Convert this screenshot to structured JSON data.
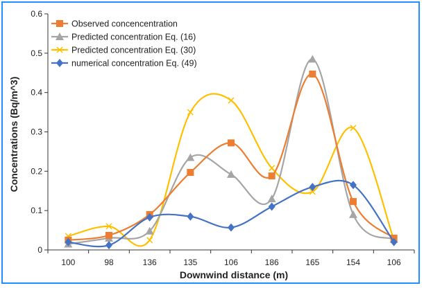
{
  "chart_data": {
    "type": "line",
    "title": "",
    "xlabel": "Downwind distance (m)",
    "ylabel": "Concentrations (Bq/m^3)",
    "categories": [
      "100",
      "98",
      "136",
      "135",
      "106",
      "186",
      "165",
      "154",
      "106"
    ],
    "ylim": [
      0,
      0.6
    ],
    "yticks": [
      "0",
      "0.1",
      "0.2",
      "0.3",
      "0.4",
      "0.5",
      "0.6"
    ],
    "grid": false,
    "legend_position": "top-left",
    "series": [
      {
        "name": "Observed concencentration",
        "color": "#ed7d31",
        "marker": "square",
        "values": [
          0.025,
          0.037,
          0.09,
          0.197,
          0.272,
          0.188,
          0.447,
          0.123,
          0.03
        ]
      },
      {
        "name": "Predicted concentration Eq. (16)",
        "color": "#a5a5a5",
        "marker": "triangle",
        "values": [
          0.015,
          0.03,
          0.048,
          0.235,
          0.192,
          0.13,
          0.485,
          0.09,
          0.027
        ]
      },
      {
        "name": "Predicted concentration Eq. (30)",
        "color": "#ffc000",
        "marker": "x",
        "values": [
          0.035,
          0.06,
          0.025,
          0.35,
          0.38,
          0.208,
          0.148,
          0.31,
          0.025
        ]
      },
      {
        "name": "numerical concentration Eq. (49)",
        "color": "#4472c4",
        "marker": "diamond",
        "values": [
          0.02,
          0.012,
          0.083,
          0.085,
          0.057,
          0.11,
          0.16,
          0.165,
          0.02
        ]
      }
    ]
  }
}
